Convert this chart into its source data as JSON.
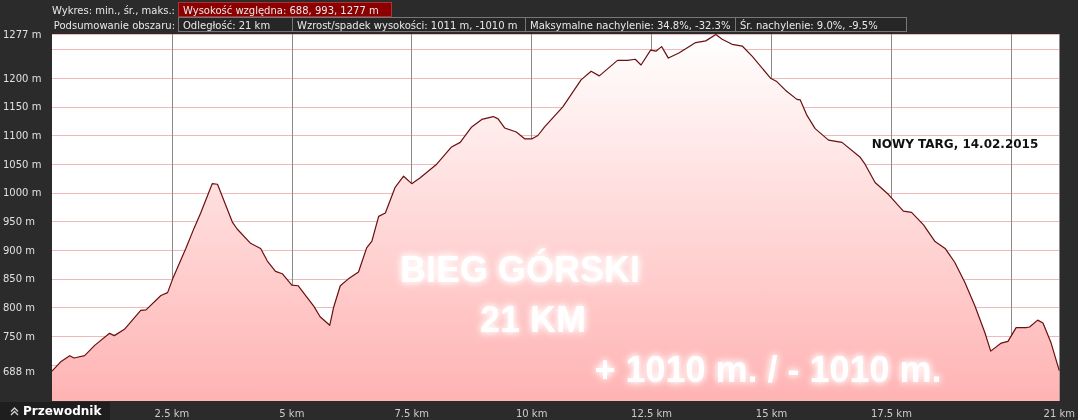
{
  "chart_data": {
    "type": "area",
    "annotations": [
      "Wykres: min., śr., maks.:",
      "Wysokość względna: 688, 993, 1277 m",
      "Podsumowanie obszaru:",
      "Odległość: 21 km",
      "Wzrost/spadek wysokości: 1011 m, -1010 m",
      "Maksymalne nachylenie: 34.8%, -32.3%",
      "Śr. nachylenie: 9.0%, -9.5%",
      "BIEG GÓRSKI",
      "21 KM",
      "+ 1010 m. / - 1010 m.",
      "NOWY TARG, 14.02.2015",
      "Przewodnik"
    ],
    "x": [
      0.0,
      0.19,
      0.37,
      0.46,
      0.68,
      0.89,
      1.2,
      1.3,
      1.51,
      1.85,
      1.96,
      2.27,
      2.41,
      2.53,
      2.79,
      2.96,
      3.1,
      3.34,
      3.45,
      3.76,
      3.86,
      4.14,
      4.35,
      4.49,
      4.66,
      4.8,
      5.0,
      5.13,
      5.46,
      5.59,
      5.79,
      5.87,
      6.01,
      6.18,
      6.39,
      6.56,
      6.67,
      6.81,
      6.95,
      7.15,
      7.33,
      7.5,
      7.67,
      8.02,
      8.33,
      8.51,
      8.75,
      8.96,
      9.2,
      9.3,
      9.44,
      9.68,
      9.86,
      10.0,
      10.13,
      10.27,
      10.65,
      11.03,
      11.24,
      11.41,
      11.79,
      12.0,
      12.16,
      12.28,
      12.48,
      12.59,
      12.71,
      12.85,
      13.07,
      13.42,
      13.63,
      13.84,
      13.97,
      14.18,
      14.39,
      14.6,
      14.98,
      15.11,
      15.29,
      15.53,
      15.6,
      15.74,
      15.91,
      16.19,
      16.47,
      16.85,
      16.95,
      17.16,
      17.44,
      17.75,
      17.92,
      18.17,
      18.41,
      18.62,
      18.82,
      19.03,
      19.24,
      19.45,
      19.57,
      19.79,
      19.93,
      20.1,
      20.31,
      20.38,
      20.55,
      20.66,
      20.83,
      21.0
    ],
    "series": [
      {
        "color": "#ffb3b3",
        "values": [
          689,
          706,
          716,
          712,
          716,
          734,
          755,
          751,
          762,
          795,
          796,
          821,
          826,
          853,
          903,
          938,
          965,
          1016,
          1015,
          949,
          937,
          912,
          903,
          881,
          863,
          859,
          839,
          838,
          802,
          784,
          769,
          800,
          838,
          850,
          862,
          904,
          916,
          959,
          965,
          1009,
          1029,
          1016,
          1026,
          1050,
          1080,
          1088,
          1115,
          1128,
          1133,
          1129,
          1113,
          1106,
          1094,
          1094,
          1100,
          1115,
          1150,
          1197,
          1212,
          1204,
          1231,
          1231,
          1233,
          1223,
          1249,
          1247,
          1255,
          1235,
          1244,
          1262,
          1265,
          1276,
          1268,
          1259,
          1256,
          1238,
          1200,
          1194,
          1179,
          1163,
          1162,
          1135,
          1112,
          1092,
          1088,
          1062,
          1050,
          1018,
          997,
          968,
          966,
          944,
          915,
          903,
          879,
          844,
          803,
          756,
          724,
          738,
          741,
          765,
          765,
          766,
          778,
          773,
          738,
          690
        ]
      }
    ],
    "xlim": [
      0,
      21
    ],
    "xticks": [
      {
        "value": 2.5,
        "label": "2.5 km"
      },
      {
        "value": 5,
        "label": "5 km"
      },
      {
        "value": 7.5,
        "label": "7.5 km"
      },
      {
        "value": 10,
        "label": "10 km"
      },
      {
        "value": 12.5,
        "label": "12.5 km"
      },
      {
        "value": 15,
        "label": "15 km"
      },
      {
        "value": 17.5,
        "label": "17.5 km"
      },
      {
        "value": 20,
        "label": null
      },
      {
        "value": 21,
        "label": "21 km"
      }
    ],
    "ylim": [
      637,
      1277
    ],
    "yticks": [
      {
        "value": 688,
        "label": "688 m"
      },
      {
        "value": 700,
        "label": null
      },
      {
        "value": 750,
        "label": "750 m"
      },
      {
        "value": 800,
        "label": "800 m"
      },
      {
        "value": 850,
        "label": "850 m"
      },
      {
        "value": 900,
        "label": "900 m"
      },
      {
        "value": 950,
        "label": "950 m"
      },
      {
        "value": 1000,
        "label": "1000 m"
      },
      {
        "value": 1050,
        "label": "1050 m"
      },
      {
        "value": 1100,
        "label": "1100 m"
      },
      {
        "value": 1150,
        "label": "1150 m"
      },
      {
        "value": 1200,
        "label": "1200 m"
      },
      {
        "value": 1250,
        "label": null
      },
      {
        "value": 1277,
        "label": "1277 m"
      }
    ],
    "grid": true
  }
}
